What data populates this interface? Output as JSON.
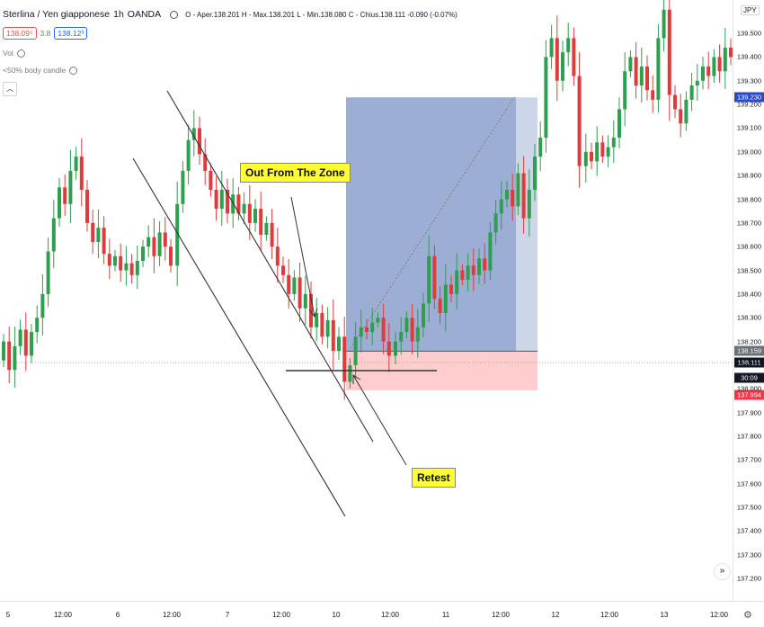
{
  "header": {
    "symbol": "Sterlina / Yen giapponese",
    "timeframe": "1h",
    "broker": "OANDA",
    "ohlc": "O - Aper.138.201 H - Max.138.201 L - Min.138.080 C - Chius.138.111 -0.090 (-0.07%)",
    "sell_price": "138.09⁵",
    "spread": "3.8",
    "buy_price": "138.12³",
    "volume_label": "Vol",
    "indicator_label": "<50% body candle",
    "collapse_icon": "chevron-up-icon"
  },
  "colors": {
    "bull": "#2e9e4f",
    "bear": "#e03b3b",
    "profit_zone": "#4c6cb0",
    "loss_zone": "#ff9c9c",
    "callout_bg": "#ffff33",
    "axis_blue": "#2a4bc4",
    "axis_red": "#f23645"
  },
  "annotations": {
    "out_from_zone": "Out From The Zone",
    "retest": "Retest"
  },
  "price_axis": {
    "currency": "JPY",
    "ticks": [
      "139.500",
      "139.400",
      "139.300",
      "139.200",
      "139.100",
      "139.000",
      "138.900",
      "138.800",
      "138.700",
      "138.600",
      "138.500",
      "138.400",
      "138.300",
      "138.200",
      "138.100",
      "138.000",
      "137.900",
      "137.800",
      "137.700",
      "137.600",
      "137.500",
      "137.400",
      "137.300",
      "137.200"
    ],
    "labels": {
      "target": "139.230",
      "entry": "138.159",
      "last": "138.111",
      "countdown": "30:09",
      "stop": "137.994"
    }
  },
  "time_axis": {
    "ticks": [
      "5",
      "12:00",
      "6",
      "12:00",
      "7",
      "12:00",
      "10",
      "12:00",
      "11",
      "12:00",
      "12",
      "12:00",
      "13",
      "12:00"
    ]
  },
  "chart_data": {
    "type": "candlestick",
    "instrument": "GBP/JPY",
    "ylim": [
      137.17,
      139.58
    ],
    "levels": {
      "target": 139.23,
      "entry": 138.159,
      "last": 138.111,
      "stop": 137.994
    },
    "series": [
      {
        "name": "segment-1",
        "start": 138.12,
        "points": [
          138.2,
          138.08,
          138.18,
          138.25,
          138.14,
          138.24,
          138.3,
          138.4,
          138.58,
          138.72,
          138.85,
          138.78,
          138.92,
          138.98,
          138.84,
          138.7,
          138.62,
          138.68,
          138.57,
          138.52,
          138.56,
          138.5,
          138.53,
          138.48,
          138.54,
          138.6,
          138.64,
          138.56,
          138.66,
          138.6,
          138.52
        ]
      },
      {
        "name": "segment-2",
        "start": 138.52,
        "points": [
          138.78,
          138.92,
          139.05,
          139.1,
          138.99,
          138.92,
          138.84,
          138.76,
          138.84,
          138.74,
          138.82,
          138.74,
          138.78,
          138.7,
          138.76,
          138.65,
          138.7,
          138.6,
          138.52,
          138.48,
          138.4,
          138.47,
          138.34,
          138.4,
          138.26,
          138.32,
          138.22,
          138.29,
          138.16,
          138.22,
          138.03,
          138.1,
          138.22,
          138.26,
          138.24,
          138.28,
          138.3,
          138.2,
          138.14
        ]
      },
      {
        "name": "segment-3",
        "start": 138.14,
        "points": [
          138.2,
          138.24,
          138.3,
          138.2,
          138.26,
          138.36,
          138.56,
          138.38,
          138.32,
          138.44,
          138.4,
          138.5,
          138.46,
          138.52,
          138.48,
          138.55,
          138.5,
          138.66,
          138.74,
          138.8,
          138.84,
          138.77,
          138.91,
          138.72,
          138.84,
          138.98,
          139.06,
          139.4,
          139.48,
          139.3,
          139.42,
          139.48,
          139.32,
          138.94
        ]
      },
      {
        "name": "segment-4",
        "start": 138.94,
        "points": [
          139.0,
          138.96,
          139.04,
          138.98,
          139.02,
          139.06,
          139.18,
          139.34,
          139.4,
          139.28,
          139.36,
          139.26,
          139.22,
          139.48,
          139.6,
          139.24,
          139.18,
          139.12,
          139.22,
          139.28,
          139.3,
          139.36,
          139.32,
          139.4,
          139.34,
          139.44,
          139.4,
          139.48,
          139.56
        ]
      }
    ]
  }
}
